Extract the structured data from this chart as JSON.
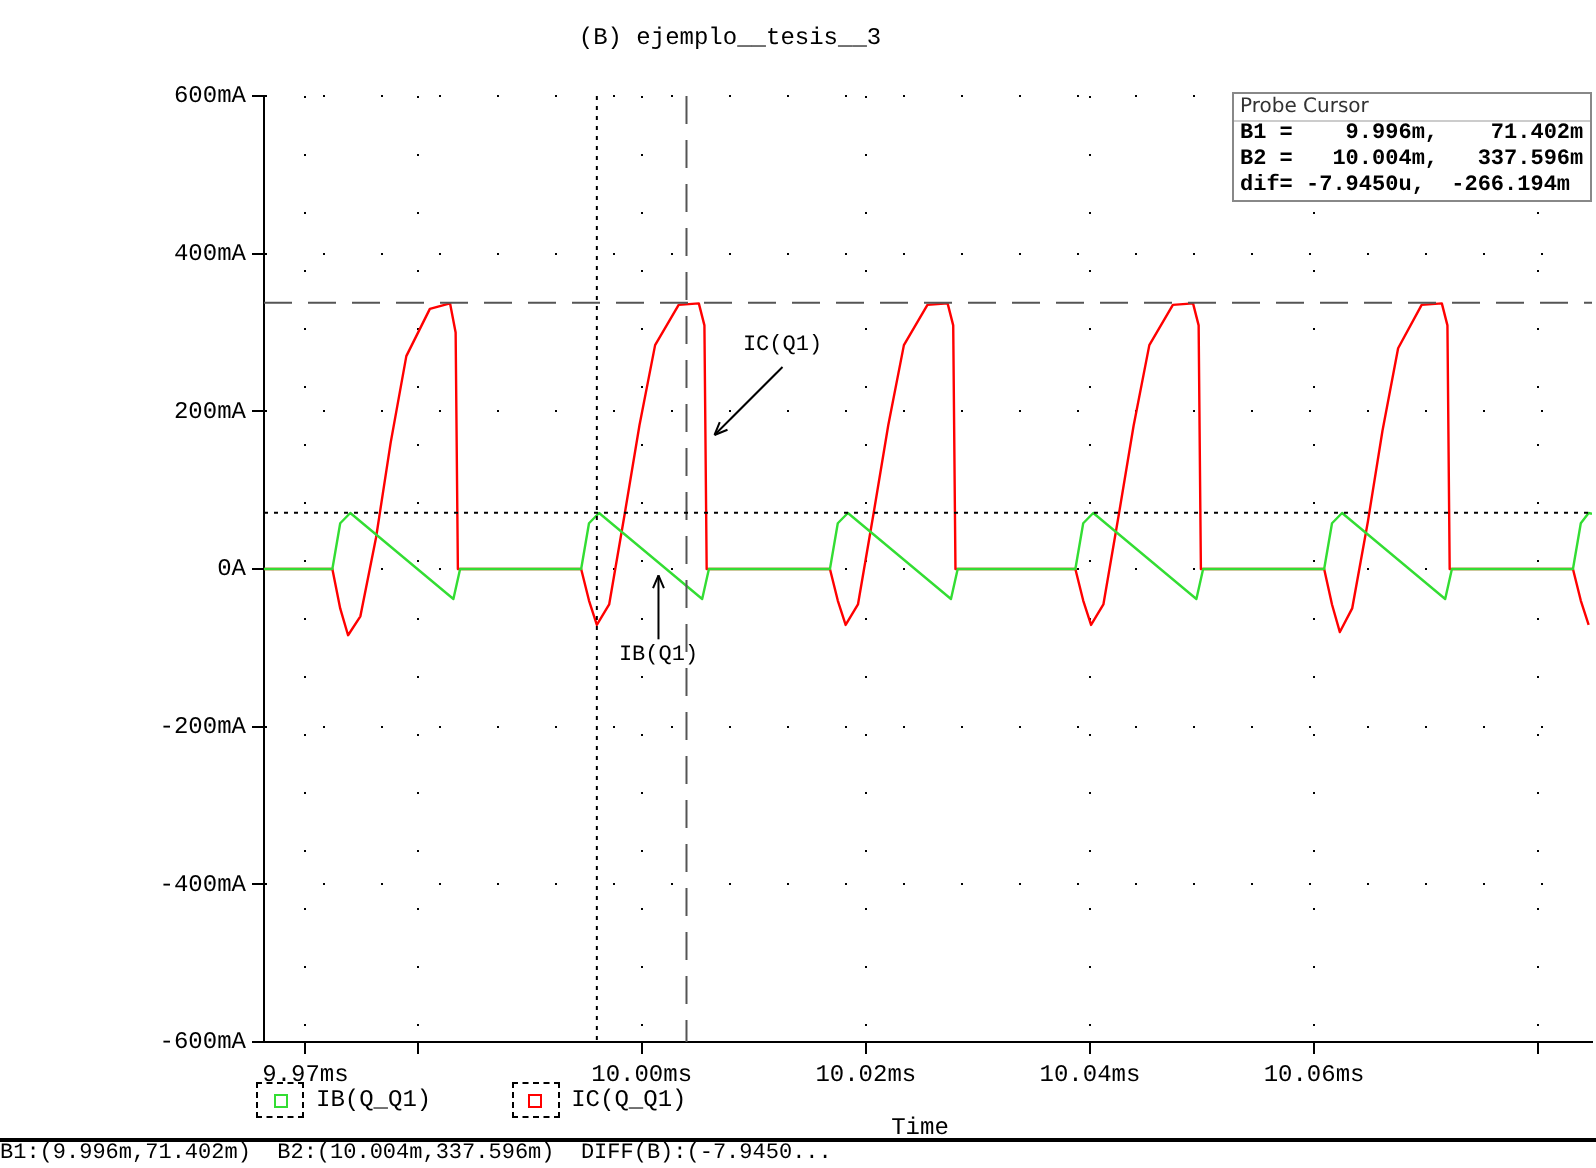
{
  "chart_data": {
    "type": "line",
    "title": "(B) ejemplo__tesis__3",
    "xlabel": "Time",
    "xlim": [
      9.9663,
      10.0848
    ],
    "xticks": [
      {
        "value": 9.97,
        "label": "9.97ms"
      },
      {
        "value": 9.98,
        "label": null
      },
      {
        "value": 10.0,
        "label": "10.00ms"
      },
      {
        "value": 10.02,
        "label": "10.02ms"
      },
      {
        "value": 10.04,
        "label": "10.04ms"
      },
      {
        "value": 10.06,
        "label": "10.06ms"
      },
      {
        "value": 10.08,
        "label": null
      }
    ],
    "ylim": [
      -600,
      600
    ],
    "yticks": [
      {
        "value": -600,
        "label": "-600mA"
      },
      {
        "value": -400,
        "label": "-400mA"
      },
      {
        "value": -200,
        "label": "-200mA"
      },
      {
        "value": 0,
        "label": "0A"
      },
      {
        "value": 200,
        "label": "200mA"
      },
      {
        "value": 400,
        "label": "400mA"
      },
      {
        "value": 600,
        "label": "600mA"
      }
    ],
    "grid": true,
    "legend": "bottom left",
    "marker": "none",
    "line_style": "solid",
    "series": [
      {
        "name": "IB(Q_Q1)",
        "color": "#33dd33",
        "x": [
          9.9663,
          9.9724,
          9.9731,
          9.974,
          9.9832,
          9.9838,
          9.9946,
          9.9953,
          9.9962,
          10.0054,
          10.006,
          10.0168,
          10.0175,
          10.0184,
          10.0276,
          10.0282,
          10.0387,
          10.0394,
          10.0403,
          10.0495,
          10.0501,
          10.0609,
          10.0616,
          10.0625,
          10.0717,
          10.0723,
          10.0831,
          10.0838,
          10.0845,
          10.0848
        ],
        "values": [
          0,
          0,
          58,
          71,
          -38,
          0,
          0,
          58,
          71,
          -38,
          0,
          0,
          58,
          71,
          -38,
          0,
          0,
          58,
          71,
          -38,
          0,
          0,
          58,
          71,
          -38,
          0,
          0,
          58,
          71,
          70
        ]
      },
      {
        "name": "IC(Q_Q1)",
        "color": "#ff0000",
        "x": [
          9.9663,
          9.9724,
          9.9731,
          9.9738,
          9.9749,
          9.9763,
          9.9776,
          9.979,
          9.9811,
          9.9829,
          9.9834,
          9.9836,
          9.9946,
          9.9953,
          9.996,
          9.9971,
          9.9985,
          9.9998,
          10.0012,
          10.0033,
          10.0051,
          10.0056,
          10.0058,
          10.0168,
          10.0175,
          10.0182,
          10.0193,
          10.0207,
          10.022,
          10.0234,
          10.0255,
          10.0273,
          10.0278,
          10.028,
          10.0387,
          10.0394,
          10.0401,
          10.0412,
          10.0426,
          10.0439,
          10.0453,
          10.0474,
          10.0492,
          10.0497,
          10.0499,
          10.0609,
          10.0616,
          10.0623,
          10.0634,
          10.0648,
          10.0661,
          10.0675,
          10.0696,
          10.0714,
          10.0719,
          10.0721,
          10.0831,
          10.0838,
          10.0845
        ],
        "values": [
          0,
          0,
          -50,
          -84,
          -60,
          40,
          160,
          270,
          330,
          337,
          300,
          0,
          0,
          -40,
          -71,
          -45,
          71,
          182,
          284,
          335,
          337,
          309,
          0,
          0,
          -40,
          -71,
          -45,
          71,
          182,
          284,
          335,
          337,
          309,
          0,
          0,
          -40,
          -71,
          -45,
          71,
          182,
          284,
          335,
          337,
          309,
          0,
          0,
          -45,
          -80,
          -50,
          60,
          175,
          280,
          335,
          337,
          309,
          0,
          0,
          -40,
          -71
        ]
      }
    ],
    "ref_lines": [
      {
        "axis": "x",
        "value": 9.996,
        "label": null,
        "color": "#000000",
        "line_style": "dotted"
      },
      {
        "axis": "x",
        "value": 10.004,
        "label": null,
        "color": "#555555",
        "line_style": "dashed"
      },
      {
        "axis": "y",
        "value": 71.402,
        "label": null,
        "color": "#000000",
        "line_style": "dotted"
      },
      {
        "axis": "y",
        "value": 337.596,
        "label": null,
        "color": "#555555",
        "line_style": "dashed"
      }
    ],
    "annotations": [
      {
        "text": "IC(Q1)",
        "x": 10.0065,
        "y": 170
      },
      {
        "text": "IB(Q1)",
        "x": 10.0015,
        "y": -8
      },
      "Probe Cursor",
      "B1 =    9.996m,    71.402m",
      "B2 =   10.004m,   337.596m",
      "dif= -7.9450u,  -266.194m",
      "B1:(9.996m,71.402m)  B2:(10.004m,337.596m)  DIFF(B):(-7.9450..."
    ]
  }
}
